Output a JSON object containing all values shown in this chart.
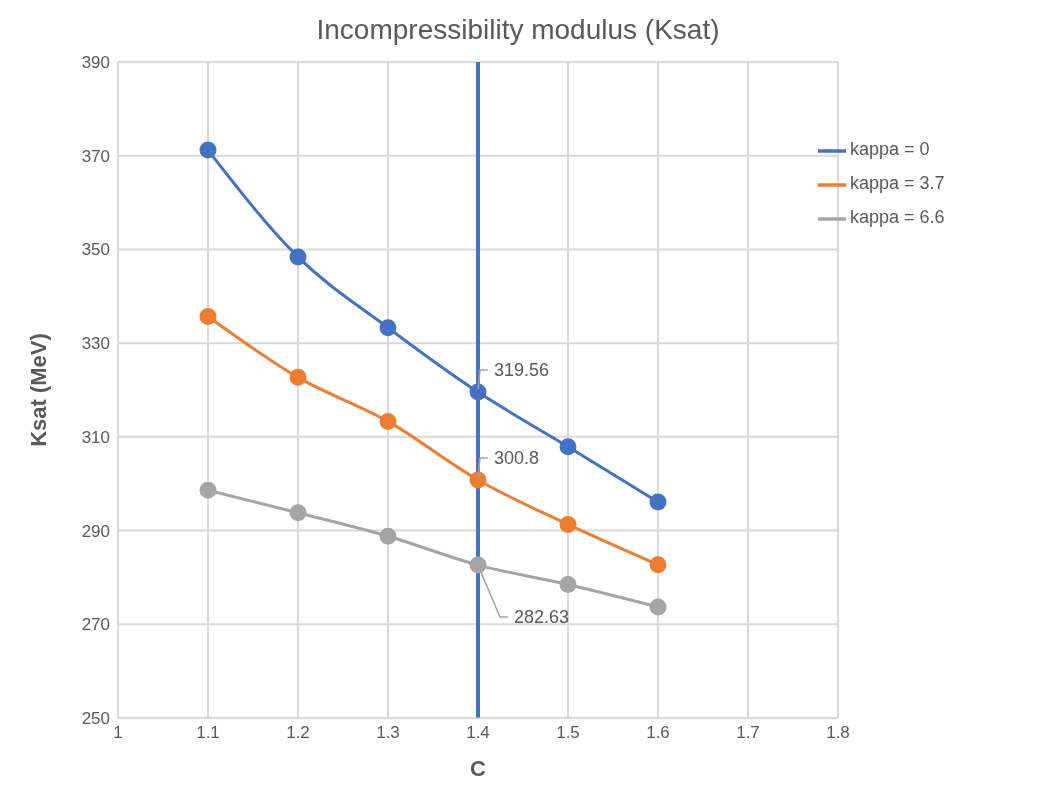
{
  "chart_data": {
    "type": "line",
    "title": "Incompressibility modulus (Ksat)",
    "xlabel": "C",
    "ylabel": "Ksat (MeV)",
    "x": [
      1.1,
      1.2,
      1.3,
      1.4,
      1.5,
      1.6
    ],
    "series": [
      {
        "name": "kappa = 0",
        "color": "#4472c4",
        "values": [
          371.2,
          348.4,
          333.3,
          319.56,
          307.9,
          296.1
        ],
        "value_labels": [
          null,
          null,
          null,
          "319.56",
          null,
          null
        ]
      },
      {
        "name": "kappa = 3.7",
        "color": "#ed7d31",
        "values": [
          335.7,
          322.7,
          313.3,
          300.8,
          291.3,
          282.7
        ],
        "value_labels": [
          null,
          null,
          null,
          "300.8",
          null,
          null
        ]
      },
      {
        "name": "kappa = 6.6",
        "color": "#a5a5a5",
        "values": [
          298.6,
          293.8,
          288.8,
          282.63,
          278.5,
          273.7
        ],
        "value_labels": [
          null,
          null,
          null,
          "282.63",
          null,
          null
        ]
      }
    ],
    "xlim": [
      1,
      1.8
    ],
    "xticks": [
      1,
      1.1,
      1.2,
      1.3,
      1.4,
      1.5,
      1.6,
      1.7,
      1.8
    ],
    "ylim": [
      250,
      390
    ],
    "yticks": [
      250,
      270,
      290,
      310,
      330,
      350,
      370,
      390
    ],
    "ref_lines": [
      {
        "axis": "x",
        "value": 1.4,
        "color": "#4472c4"
      }
    ],
    "grid": true,
    "legend": "top right",
    "marker": "circle",
    "line_style": "solid"
  }
}
